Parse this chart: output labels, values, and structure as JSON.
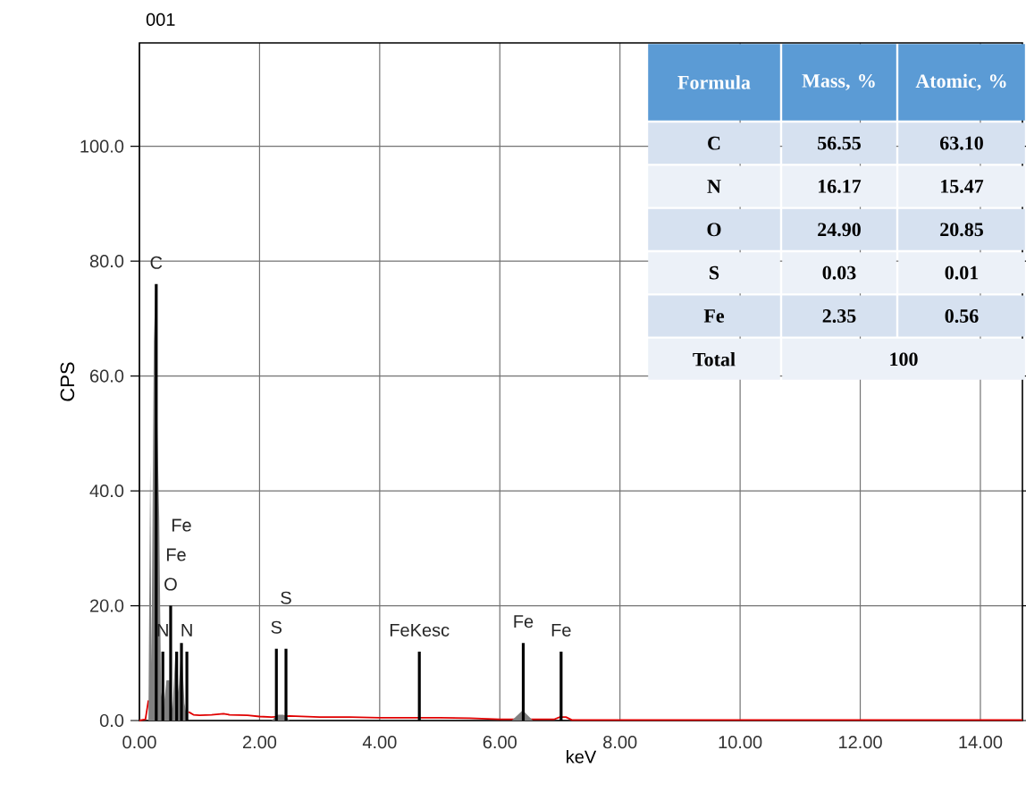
{
  "chart_data": [
    {
      "type": "line",
      "title": "001",
      "xlabel": "keV",
      "ylabel": "CPS",
      "xlim": [
        0,
        14.7
      ],
      "ylim": [
        0,
        118
      ],
      "xticks": [
        {
          "value": 0,
          "label": "0.00"
        },
        {
          "value": 2,
          "label": "2.00"
        },
        {
          "value": 4,
          "label": "4.00"
        },
        {
          "value": 6,
          "label": "6.00"
        },
        {
          "value": 8,
          "label": "8.00"
        },
        {
          "value": 10,
          "label": "10.00"
        },
        {
          "value": 12,
          "label": "12.00"
        },
        {
          "value": 14,
          "label": "14.00"
        }
      ],
      "yticks": [
        {
          "value": 0,
          "label": "0.0"
        },
        {
          "value": 20,
          "label": "20.0"
        },
        {
          "value": 40,
          "label": "40.0"
        },
        {
          "value": 60,
          "label": "60.0"
        },
        {
          "value": 80,
          "label": "80.0"
        },
        {
          "value": 100,
          "label": "100.0"
        }
      ],
      "grid": true,
      "series": [
        {
          "color": "#e00000",
          "x": [
            0,
            0.1,
            0.15,
            0.17,
            0.82,
            0.9,
            1.0,
            1.2,
            1.4,
            1.5,
            1.8,
            2.0,
            2.2,
            2.5,
            3.0,
            3.5,
            4.0,
            4.5,
            5.0,
            5.5,
            6.0,
            6.5,
            6.9,
            7.0,
            7.1,
            7.2,
            8.0,
            10.0,
            12.0,
            14.7
          ],
          "values": [
            0,
            0.2,
            3.5,
            null,
            1.5,
            1.0,
            0.9,
            1.0,
            1.2,
            1.0,
            0.9,
            0.7,
            0.6,
            0.8,
            0.6,
            0.6,
            0.5,
            0.5,
            0.5,
            0.4,
            0.2,
            0.2,
            0.2,
            0.6,
            0.6,
            0.1,
            0.1,
            0.1,
            0.1,
            0.1
          ]
        },
        {
          "type": "area",
          "color": "#808080",
          "x": [
            0.15,
            0.18,
            0.2,
            0.24,
            0.27,
            0.3,
            0.33,
            0.36,
            0.4,
            0.45,
            0.5,
            0.55,
            0.6,
            0.65,
            0.7,
            0.75,
            0.8,
            2.2,
            2.3,
            2.4,
            2.5,
            6.2,
            6.38,
            6.55
          ],
          "values": [
            0,
            45,
            10,
            66,
            76,
            50,
            35,
            5,
            2,
            7,
            7,
            2,
            12,
            5,
            13,
            3,
            0,
            0,
            1,
            1,
            0,
            0,
            1.8,
            0
          ]
        },
        {
          "type": "bar",
          "color": "#000000",
          "x": [
            0.28,
            0.39,
            0.52,
            0.62,
            0.7,
            0.79,
            2.28,
            2.44,
            4.66,
            6.39,
            7.02
          ],
          "values": [
            76,
            12,
            20,
            12,
            13.5,
            12,
            12.5,
            12.5,
            12,
            13.5,
            12
          ]
        }
      ],
      "annotations": [
        {
          "text": "C",
          "x": 0.28,
          "y": 76
        },
        {
          "text": "N",
          "x": 0.39,
          "y": 12
        },
        {
          "text": "O",
          "x": 0.52,
          "y": 20
        },
        "Fe",
        "Fe",
        {
          "text": "N",
          "x": 0.79,
          "y": 12
        },
        {
          "text": "S",
          "x": 2.28,
          "y": 12.5
        },
        {
          "text": "S",
          "x": 2.44,
          "y": 12.5
        },
        {
          "text": "FeKesc",
          "x": 4.66,
          "y": 12
        },
        {
          "text": "Fe",
          "x": 6.39,
          "y": 13.5
        },
        {
          "text": "Fe",
          "x": 7.02,
          "y": 12
        }
      ]
    },
    {
      "type": "other",
      "annotations": [
        "Formula",
        "Mass, %",
        "Atomic, %",
        "C",
        "56.55",
        "63.10",
        "N",
        "16.17",
        "15.47",
        "O",
        "24.90",
        "20.85",
        "S",
        "0.03",
        "0.01",
        "Fe",
        "2.35",
        "0.56",
        "Total",
        "100"
      ]
    }
  ]
}
